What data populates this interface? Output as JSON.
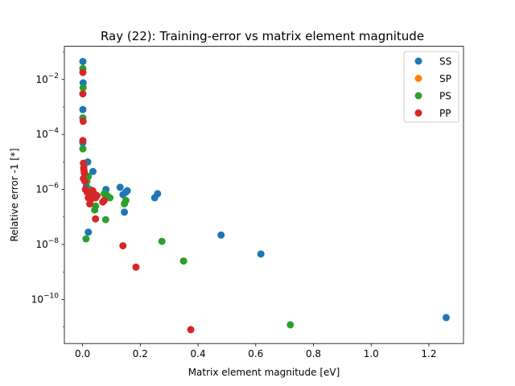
{
  "chart_data": {
    "type": "scatter",
    "title": "Ray (22): Training-error vs matrix element magnitude",
    "xlabel": "Matrix element magnitude [eV]",
    "ylabel": "Relative error -1 [*]",
    "xlim": [
      -0.063,
      1.32
    ],
    "ylim": [
      2.5e-12,
      0.16
    ],
    "yscale": "log",
    "xticks": [
      0.0,
      0.2,
      0.4,
      0.6,
      0.8,
      1.0,
      1.2
    ],
    "xtick_labels": [
      "0.0",
      "0.2",
      "0.4",
      "0.6",
      "0.8",
      "1.0",
      "1.2"
    ],
    "yticks": [
      1e-10,
      1e-08,
      1e-06,
      0.0001,
      0.01
    ],
    "ytick_labels": [
      {
        "base": "10",
        "exp": "−10"
      },
      {
        "base": "10",
        "exp": "−8"
      },
      {
        "base": "10",
        "exp": "−6"
      },
      {
        "base": "10",
        "exp": "−4"
      },
      {
        "base": "10",
        "exp": "−2"
      }
    ],
    "grid": false,
    "legend_position": "top-right",
    "series": [
      {
        "name": "SS",
        "color": "#1f77b4",
        "points": [
          [
            0.001,
            0.045
          ],
          [
            0.002,
            0.0075
          ],
          [
            0.001,
            0.0008
          ],
          [
            0.001,
            5e-05
          ],
          [
            0.018,
            1e-05
          ],
          [
            0.036,
            4.5e-06
          ],
          [
            0.013,
            1.3e-06
          ],
          [
            0.081,
            1e-06
          ],
          [
            0.13,
            1.2e-06
          ],
          [
            0.155,
            9e-07
          ],
          [
            0.14,
            6.5e-07
          ],
          [
            0.15,
            8e-07
          ],
          [
            0.26,
            7e-07
          ],
          [
            0.25,
            5e-07
          ],
          [
            0.145,
            1.5e-07
          ],
          [
            0.02,
            2.8e-08
          ],
          [
            0.48,
            2.2e-08
          ],
          [
            0.618,
            4.5e-09
          ],
          [
            1.26,
            2.2e-11
          ]
        ]
      },
      {
        "name": "SP",
        "color": "#ff7f0e",
        "points": []
      },
      {
        "name": "PS",
        "color": "#2ca02c",
        "points": [
          [
            0.001,
            0.025
          ],
          [
            0.002,
            0.005
          ],
          [
            0.001,
            0.0004
          ],
          [
            0.001,
            3e-05
          ],
          [
            0.006,
            8e-06
          ],
          [
            0.02,
            3e-06
          ],
          [
            0.015,
            2e-06
          ],
          [
            0.025,
            1e-06
          ],
          [
            0.03,
            6e-07
          ],
          [
            0.075,
            7e-07
          ],
          [
            0.085,
            6e-07
          ],
          [
            0.095,
            5e-07
          ],
          [
            0.15,
            4e-07
          ],
          [
            0.145,
            3e-07
          ],
          [
            0.045,
            2.5e-07
          ],
          [
            0.042,
            1.8e-07
          ],
          [
            0.08,
            8e-08
          ],
          [
            0.012,
            1.6e-08
          ],
          [
            0.275,
            1.3e-08
          ],
          [
            0.35,
            2.5e-09
          ],
          [
            0.72,
            1.2e-11
          ]
        ]
      },
      {
        "name": "PP",
        "color": "#d62728",
        "points": [
          [
            0.001,
            0.018
          ],
          [
            0.001,
            0.003
          ],
          [
            0.002,
            0.0003
          ],
          [
            0.001,
            6e-05
          ],
          [
            0.003,
            9e-06
          ],
          [
            0.004,
            6e-06
          ],
          [
            0.005,
            5e-06
          ],
          [
            0.006,
            4e-06
          ],
          [
            0.003,
            2.5e-06
          ],
          [
            0.008,
            2e-06
          ],
          [
            0.01,
            1e-06
          ],
          [
            0.016,
            8e-07
          ],
          [
            0.02,
            5e-07
          ],
          [
            0.035,
            9e-07
          ],
          [
            0.04,
            7e-07
          ],
          [
            0.045,
            5e-07
          ],
          [
            0.05,
            6e-07
          ],
          [
            0.03,
            4.5e-07
          ],
          [
            0.075,
            4e-07
          ],
          [
            0.07,
            3.5e-07
          ],
          [
            0.025,
            3e-07
          ],
          [
            0.045,
            8.5e-08
          ],
          [
            0.14,
            9e-09
          ],
          [
            0.185,
            1.5e-09
          ],
          [
            0.375,
            8e-12
          ]
        ]
      }
    ]
  }
}
